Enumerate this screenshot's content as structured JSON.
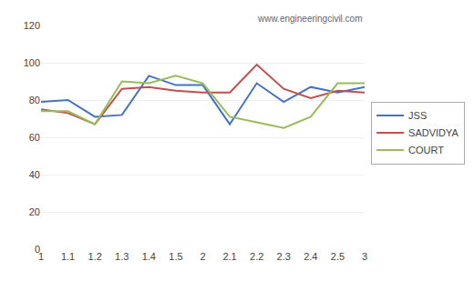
{
  "chart_data": {
    "type": "line",
    "categories": [
      "1",
      "1.1",
      "1.2",
      "1.3",
      "1.4",
      "1.5",
      "2",
      "2.1",
      "2.2",
      "2.3",
      "2.4",
      "2.5",
      "3"
    ],
    "series": [
      {
        "name": "JSS",
        "color": "#4472C4",
        "values": [
          79,
          80,
          71,
          72,
          93,
          88,
          88,
          67,
          89,
          79,
          87,
          84,
          87
        ]
      },
      {
        "name": "SADVIDYA",
        "color": "#C0504D",
        "values": [
          75,
          73,
          67,
          86,
          87,
          85,
          84,
          84,
          99,
          86,
          81,
          85,
          84
        ]
      },
      {
        "name": "COURT",
        "color": "#9BBB59",
        "values": [
          74,
          74,
          67,
          90,
          89,
          93,
          89,
          71,
          68,
          65,
          71,
          89,
          89
        ]
      }
    ],
    "ylim": [
      0,
      120
    ],
    "yticks": [
      0,
      20,
      40,
      60,
      80,
      100,
      120
    ],
    "grid": true,
    "legend": "right",
    "annotations": [
      "www.engineeringcivil.com"
    ]
  }
}
